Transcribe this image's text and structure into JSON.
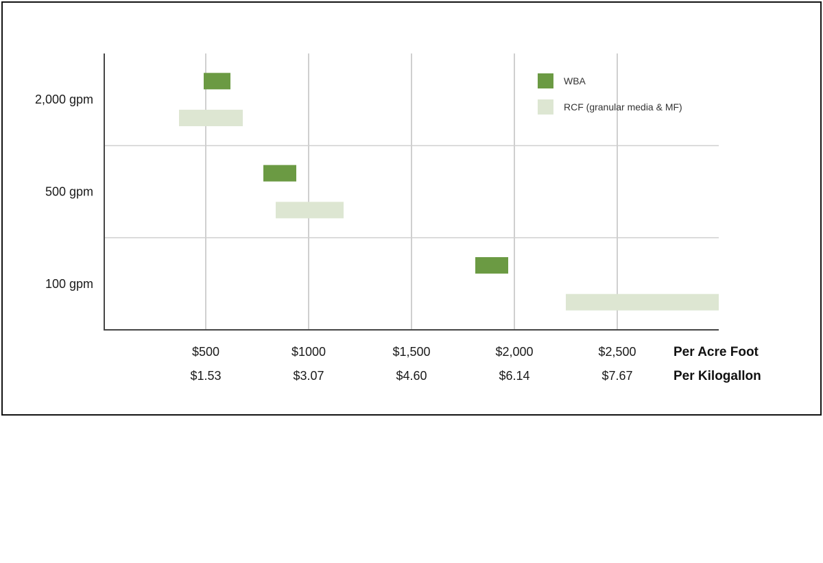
{
  "chart_data": {
    "type": "bar",
    "orientation": "horizontal-range",
    "categories": [
      "2,000 gpm",
      "500 gpm",
      "100 gpm"
    ],
    "x_ticks": [
      500,
      1000,
      1500,
      2000,
      2500
    ],
    "x_tick_labels_acre_foot": [
      "$500",
      "$1000",
      "$1,500",
      "$2,000",
      "$2,500"
    ],
    "x_tick_labels_kilogallon": [
      "$1.53",
      "$3.07",
      "$4.60",
      "$6.14",
      "$7.67"
    ],
    "xaxis_title_primary": "Per Acre Foot",
    "xaxis_title_secondary": "Per Kilogallon",
    "xlim": [
      0,
      3000
    ],
    "grid": true,
    "legend_position": "top-right",
    "series": [
      {
        "name": "WBA",
        "color": "#6b9a43",
        "ranges": [
          [
            490,
            620
          ],
          [
            780,
            940
          ],
          [
            1810,
            1970
          ]
        ]
      },
      {
        "name": "RCF (granular media & MF)",
        "color": "#dde6d2",
        "ranges": [
          [
            370,
            680
          ],
          [
            840,
            1170
          ],
          [
            2250,
            3000
          ]
        ]
      }
    ]
  }
}
